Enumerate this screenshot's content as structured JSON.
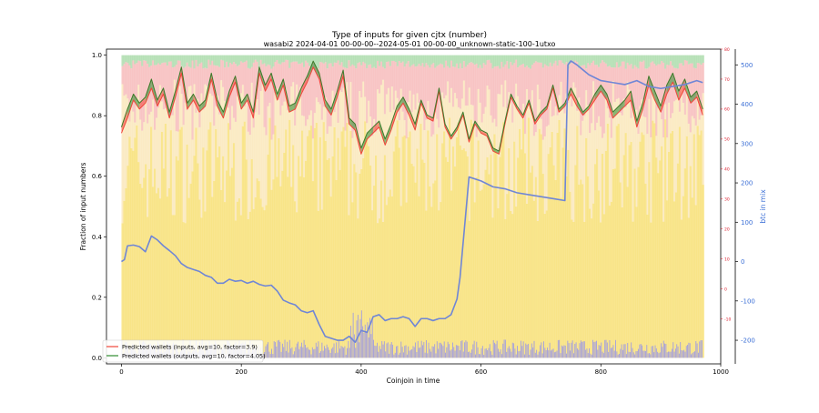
{
  "chart_data": {
    "type": "area",
    "title": "Type of inputs for given cjtx (number)",
    "subtitle": "wasabi2 2024-04-01 00-00-00--2024-05-01 00-00-00_unknown-static-100-1utxo",
    "xlabel": "Coinjoin in time",
    "ylabel_left": "Fraction of input numbers",
    "ylabel_right": "btc in mix",
    "xlim": [
      -25,
      1000
    ],
    "ylim_left": [
      -0.02,
      1.02
    ],
    "ylim_mid": [
      -25,
      80
    ],
    "ylim_right": [
      -260,
      540
    ],
    "x_ticks": [
      "0",
      "200",
      "400",
      "600",
      "800",
      "1000"
    ],
    "y_ticks_left": [
      "0.0",
      "0.2",
      "0.4",
      "0.6",
      "0.8",
      "1.0"
    ],
    "y_ticks_mid": [
      "-10",
      "0",
      "10",
      "20",
      "30",
      "40",
      "50",
      "60",
      "70",
      "80"
    ],
    "y_ticks_right": [
      "-200",
      "-100",
      "0",
      "100",
      "200",
      "300",
      "400",
      "500"
    ],
    "n_coinjoins": 970,
    "legend_position": "lower-left",
    "legend": [
      {
        "label": "Predicted wallets (inputs, avg=10, factor=3.9)",
        "color": "#f0453a"
      },
      {
        "label": "Predicted wallets (outputs, avg=10, factor=4.05)",
        "color": "#2e8b2e"
      }
    ],
    "stack_layers": [
      {
        "color": "#f7dd6b",
        "typical_top": 0.62
      },
      {
        "color": "#fae6b5",
        "typical_top": 0.82
      },
      {
        "color": "#f6b6b6",
        "typical_top": 0.97
      },
      {
        "color": "#a6d9a6",
        "typical_top": 1.0
      }
    ],
    "input_bars_color": "#8c8cf5",
    "wallets_inputs": {
      "x": [
        0,
        10,
        20,
        30,
        40,
        50,
        60,
        70,
        80,
        90,
        100,
        110,
        120,
        130,
        140,
        150,
        160,
        170,
        180,
        190,
        200,
        210,
        220,
        230,
        240,
        250,
        260,
        270,
        280,
        290,
        300,
        310,
        320,
        330,
        340,
        350,
        360,
        370,
        380,
        390,
        400,
        410,
        420,
        430,
        440,
        450,
        460,
        470,
        480,
        490,
        500,
        510,
        520,
        530,
        540,
        550,
        560,
        570,
        580,
        590,
        600,
        610,
        620,
        630,
        640,
        650,
        660,
        670,
        680,
        690,
        700,
        710,
        720,
        730,
        740,
        750,
        760,
        770,
        780,
        790,
        800,
        810,
        820,
        830,
        840,
        850,
        860,
        870,
        880,
        890,
        900,
        910,
        920,
        930,
        940,
        950,
        960,
        970
      ],
      "values": [
        52,
        57,
        63,
        60,
        62,
        67,
        61,
        65,
        57,
        64,
        72,
        60,
        63,
        59,
        61,
        70,
        61,
        57,
        64,
        69,
        60,
        63,
        57,
        72,
        66,
        70,
        63,
        68,
        59,
        60,
        65,
        69,
        74,
        70,
        61,
        58,
        64,
        71,
        55,
        53,
        45,
        50,
        52,
        54,
        48,
        53,
        59,
        62,
        58,
        53,
        62,
        57,
        56,
        66,
        54,
        50,
        53,
        58,
        49,
        55,
        52,
        51,
        46,
        45,
        55,
        64,
        60,
        57,
        62,
        55,
        58,
        60,
        67,
        59,
        61,
        65,
        61,
        58,
        60,
        63,
        66,
        63,
        57,
        59,
        61,
        63,
        54,
        60,
        68,
        63,
        59,
        65,
        69,
        63,
        67,
        62,
        64,
        58
      ]
    },
    "wallets_outputs": {
      "x": [
        0,
        10,
        20,
        30,
        40,
        50,
        60,
        70,
        80,
        90,
        100,
        110,
        120,
        130,
        140,
        150,
        160,
        170,
        180,
        190,
        200,
        210,
        220,
        230,
        240,
        250,
        260,
        270,
        280,
        290,
        300,
        310,
        320,
        330,
        340,
        350,
        360,
        370,
        380,
        390,
        400,
        410,
        420,
        430,
        440,
        450,
        460,
        470,
        480,
        490,
        500,
        510,
        520,
        530,
        540,
        550,
        560,
        570,
        580,
        590,
        600,
        610,
        620,
        630,
        640,
        650,
        660,
        670,
        680,
        690,
        700,
        710,
        720,
        730,
        740,
        750,
        760,
        770,
        780,
        790,
        800,
        810,
        820,
        830,
        840,
        850,
        860,
        870,
        880,
        890,
        900,
        910,
        920,
        930,
        940,
        950,
        960,
        970
      ],
      "values": [
        54,
        60,
        65,
        62,
        64,
        70,
        63,
        67,
        59,
        66,
        74,
        62,
        65,
        61,
        63,
        72,
        63,
        59,
        66,
        71,
        62,
        65,
        59,
        74,
        68,
        72,
        65,
        70,
        61,
        62,
        67,
        71,
        76,
        72,
        63,
        60,
        66,
        73,
        57,
        55,
        47,
        52,
        54,
        56,
        50,
        55,
        61,
        64,
        60,
        55,
        63,
        58,
        57,
        67,
        55,
        51,
        54,
        59,
        50,
        56,
        53,
        52,
        47,
        46,
        56,
        65,
        61,
        58,
        63,
        56,
        59,
        61,
        68,
        60,
        62,
        67,
        63,
        59,
        61,
        65,
        68,
        65,
        59,
        61,
        63,
        66,
        56,
        62,
        71,
        66,
        61,
        68,
        72,
        66,
        70,
        64,
        66,
        60
      ]
    },
    "btc_in_mix": {
      "x": [
        0,
        5,
        10,
        20,
        30,
        40,
        50,
        60,
        70,
        80,
        90,
        100,
        110,
        120,
        130,
        140,
        150,
        160,
        170,
        180,
        190,
        200,
        210,
        220,
        230,
        240,
        250,
        260,
        270,
        280,
        290,
        300,
        310,
        320,
        330,
        340,
        350,
        360,
        370,
        380,
        390,
        400,
        410,
        420,
        430,
        440,
        450,
        460,
        470,
        480,
        490,
        500,
        510,
        520,
        530,
        540,
        550,
        560,
        565,
        580,
        600,
        620,
        640,
        660,
        680,
        700,
        720,
        740,
        745,
        750,
        760,
        780,
        800,
        820,
        840,
        860,
        880,
        900,
        920,
        940,
        960,
        970
      ],
      "values": [
        0,
        5,
        40,
        42,
        38,
        25,
        65,
        55,
        40,
        28,
        15,
        -5,
        -15,
        -20,
        -25,
        -35,
        -40,
        -55,
        -55,
        -45,
        -50,
        -48,
        -55,
        -50,
        -58,
        -62,
        -60,
        -75,
        -98,
        -105,
        -110,
        -125,
        -130,
        -125,
        -160,
        -190,
        -195,
        -200,
        -200,
        -190,
        -205,
        -175,
        -180,
        -140,
        -135,
        -150,
        -145,
        -145,
        -140,
        -145,
        -165,
        -145,
        -145,
        -150,
        -145,
        -145,
        -135,
        -95,
        -40,
        215,
        205,
        190,
        185,
        175,
        170,
        165,
        160,
        155,
        500,
        510,
        500,
        475,
        460,
        455,
        450,
        460,
        445,
        440,
        445,
        450,
        460,
        455
      ]
    }
  }
}
